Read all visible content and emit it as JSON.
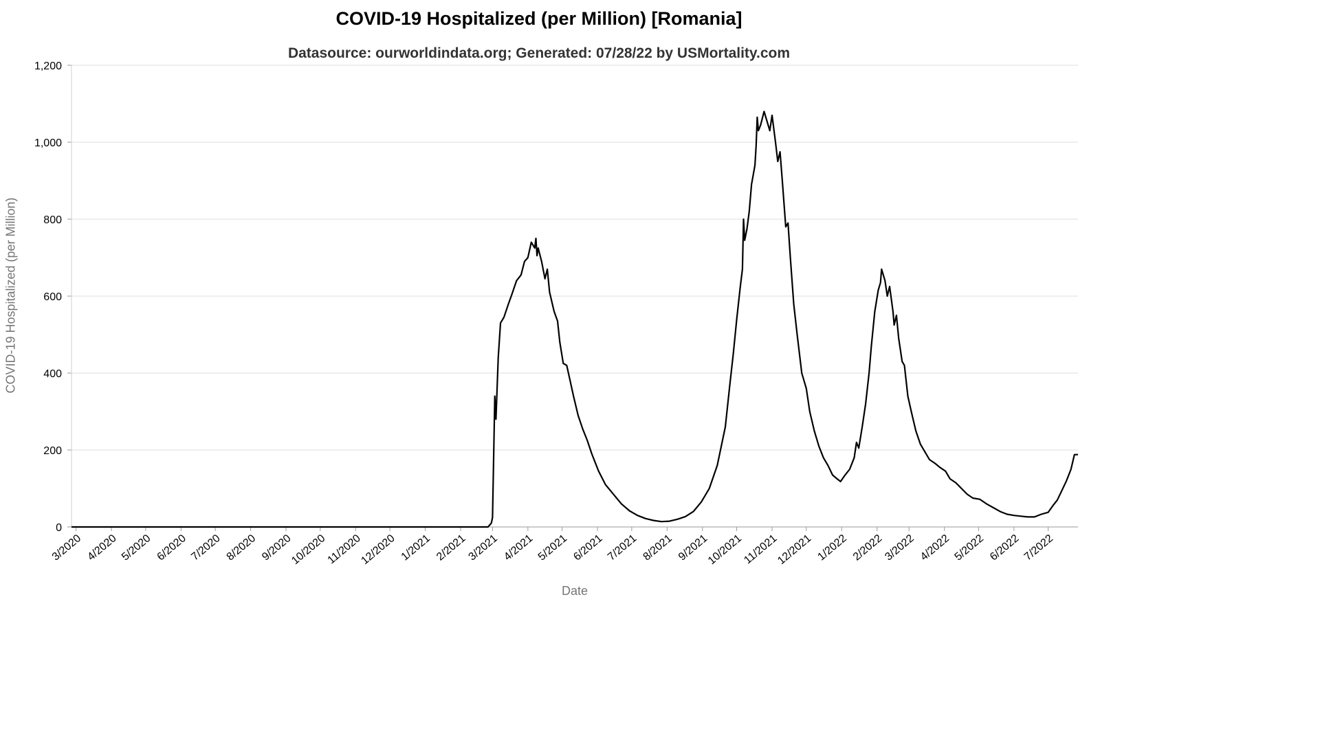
{
  "chart_data": {
    "type": "line",
    "title": "COVID-19 Hospitalized (per Million) [Romania]",
    "subtitle": "Datasource: ourworldindata.org; Generated: 07/28/22 by USMortality.com",
    "xlabel": "Date",
    "ylabel": "COVID-19 Hospitalized (per Million)",
    "ylim": [
      0,
      1200
    ],
    "yticks": [
      0,
      200,
      400,
      600,
      800,
      1000,
      1200
    ],
    "ytick_labels": [
      "0",
      "200",
      "400",
      "600",
      "800",
      "1,000",
      "1,200"
    ],
    "xticks": [
      "3/2020",
      "4/2020",
      "5/2020",
      "6/2020",
      "7/2020",
      "8/2020",
      "9/2020",
      "10/2020",
      "11/2020",
      "12/2020",
      "1/2021",
      "2/2021",
      "3/2021",
      "4/2021",
      "5/2021",
      "6/2021",
      "7/2021",
      "8/2021",
      "9/2021",
      "10/2021",
      "11/2021",
      "12/2021",
      "1/2022",
      "2/2022",
      "3/2022",
      "4/2022",
      "5/2022",
      "6/2022",
      "7/2022"
    ],
    "grid": true,
    "series": [
      {
        "color": "#000000",
        "points": [
          [
            "2020-02-26",
            0
          ],
          [
            "2021-02-25",
            0
          ],
          [
            "2021-02-28",
            10
          ],
          [
            "2021-03-01",
            25
          ],
          [
            "2021-03-03",
            340
          ],
          [
            "2021-03-04",
            280
          ],
          [
            "2021-03-06",
            440
          ],
          [
            "2021-03-08",
            530
          ],
          [
            "2021-03-11",
            545
          ],
          [
            "2021-03-15",
            580
          ],
          [
            "2021-03-18",
            605
          ],
          [
            "2021-03-22",
            640
          ],
          [
            "2021-03-26",
            655
          ],
          [
            "2021-03-29",
            690
          ],
          [
            "2021-04-01",
            700
          ],
          [
            "2021-04-04",
            740
          ],
          [
            "2021-04-07",
            725
          ],
          [
            "2021-04-08",
            750
          ],
          [
            "2021-04-09",
            705
          ],
          [
            "2021-04-10",
            725
          ],
          [
            "2021-04-13",
            690
          ],
          [
            "2021-04-16",
            645
          ],
          [
            "2021-04-18",
            670
          ],
          [
            "2021-04-20",
            610
          ],
          [
            "2021-04-24",
            560
          ],
          [
            "2021-04-27",
            535
          ],
          [
            "2021-04-29",
            480
          ],
          [
            "2021-05-02",
            425
          ],
          [
            "2021-05-05",
            420
          ],
          [
            "2021-05-08",
            380
          ],
          [
            "2021-05-11",
            340
          ],
          [
            "2021-05-15",
            290
          ],
          [
            "2021-05-19",
            255
          ],
          [
            "2021-05-23",
            225
          ],
          [
            "2021-05-27",
            190
          ],
          [
            "2021-06-02",
            145
          ],
          [
            "2021-06-08",
            110
          ],
          [
            "2021-06-15",
            85
          ],
          [
            "2021-06-22",
            60
          ],
          [
            "2021-06-29",
            42
          ],
          [
            "2021-07-06",
            30
          ],
          [
            "2021-07-13",
            22
          ],
          [
            "2021-07-20",
            17
          ],
          [
            "2021-07-27",
            14
          ],
          [
            "2021-08-03",
            15
          ],
          [
            "2021-08-10",
            20
          ],
          [
            "2021-08-17",
            27
          ],
          [
            "2021-08-24",
            40
          ],
          [
            "2021-08-31",
            65
          ],
          [
            "2021-09-07",
            100
          ],
          [
            "2021-09-14",
            160
          ],
          [
            "2021-09-21",
            260
          ],
          [
            "2021-09-25",
            370
          ],
          [
            "2021-09-28",
            450
          ],
          [
            "2021-10-01",
            540
          ],
          [
            "2021-10-04",
            620
          ],
          [
            "2021-10-06",
            670
          ],
          [
            "2021-10-07",
            800
          ],
          [
            "2021-10-08",
            745
          ],
          [
            "2021-10-10",
            775
          ],
          [
            "2021-10-12",
            820
          ],
          [
            "2021-10-14",
            890
          ],
          [
            "2021-10-17",
            940
          ],
          [
            "2021-10-18",
            990
          ],
          [
            "2021-10-19",
            1065
          ],
          [
            "2021-10-20",
            1030
          ],
          [
            "2021-10-22",
            1045
          ],
          [
            "2021-10-25",
            1080
          ],
          [
            "2021-10-28",
            1050
          ],
          [
            "2021-10-30",
            1030
          ],
          [
            "2021-11-01",
            1070
          ],
          [
            "2021-11-04",
            1000
          ],
          [
            "2021-11-06",
            950
          ],
          [
            "2021-11-08",
            975
          ],
          [
            "2021-11-10",
            900
          ],
          [
            "2021-11-13",
            780
          ],
          [
            "2021-11-15",
            790
          ],
          [
            "2021-11-17",
            700
          ],
          [
            "2021-11-20",
            580
          ],
          [
            "2021-11-23",
            500
          ],
          [
            "2021-11-27",
            400
          ],
          [
            "2021-12-01",
            360
          ],
          [
            "2021-12-04",
            300
          ],
          [
            "2021-12-08",
            250
          ],
          [
            "2021-12-12",
            210
          ],
          [
            "2021-12-16",
            180
          ],
          [
            "2021-12-20",
            160
          ],
          [
            "2021-12-24",
            135
          ],
          [
            "2021-12-28",
            125
          ],
          [
            "2021-12-31",
            118
          ],
          [
            "2022-01-04",
            135
          ],
          [
            "2022-01-08",
            150
          ],
          [
            "2022-01-12",
            180
          ],
          [
            "2022-01-14",
            220
          ],
          [
            "2022-01-16",
            205
          ],
          [
            "2022-01-19",
            260
          ],
          [
            "2022-01-22",
            320
          ],
          [
            "2022-01-25",
            400
          ],
          [
            "2022-01-27",
            470
          ],
          [
            "2022-01-30",
            560
          ],
          [
            "2022-02-02",
            615
          ],
          [
            "2022-02-04",
            635
          ],
          [
            "2022-02-05",
            670
          ],
          [
            "2022-02-08",
            640
          ],
          [
            "2022-02-10",
            600
          ],
          [
            "2022-02-12",
            625
          ],
          [
            "2022-02-15",
            560
          ],
          [
            "2022-02-16",
            525
          ],
          [
            "2022-02-18",
            550
          ],
          [
            "2022-02-20",
            490
          ],
          [
            "2022-02-23",
            430
          ],
          [
            "2022-02-25",
            420
          ],
          [
            "2022-02-28",
            340
          ],
          [
            "2022-03-03",
            300
          ],
          [
            "2022-03-07",
            250
          ],
          [
            "2022-03-11",
            215
          ],
          [
            "2022-03-15",
            195
          ],
          [
            "2022-03-19",
            175
          ],
          [
            "2022-03-24",
            165
          ],
          [
            "2022-03-28",
            155
          ],
          [
            "2022-04-02",
            145
          ],
          [
            "2022-04-06",
            125
          ],
          [
            "2022-04-11",
            115
          ],
          [
            "2022-04-16",
            100
          ],
          [
            "2022-04-21",
            85
          ],
          [
            "2022-04-26",
            75
          ],
          [
            "2022-05-02",
            72
          ],
          [
            "2022-05-08",
            60
          ],
          [
            "2022-05-14",
            50
          ],
          [
            "2022-05-20",
            40
          ],
          [
            "2022-05-26",
            33
          ],
          [
            "2022-06-01",
            30
          ],
          [
            "2022-06-07",
            28
          ],
          [
            "2022-06-13",
            26
          ],
          [
            "2022-06-19",
            26
          ],
          [
            "2022-06-25",
            33
          ],
          [
            "2022-07-01",
            38
          ],
          [
            "2022-07-05",
            55
          ],
          [
            "2022-07-09",
            70
          ],
          [
            "2022-07-13",
            95
          ],
          [
            "2022-07-17",
            120
          ],
          [
            "2022-07-21",
            150
          ],
          [
            "2022-07-24",
            188
          ],
          [
            "2022-07-28",
            188
          ]
        ]
      }
    ]
  }
}
